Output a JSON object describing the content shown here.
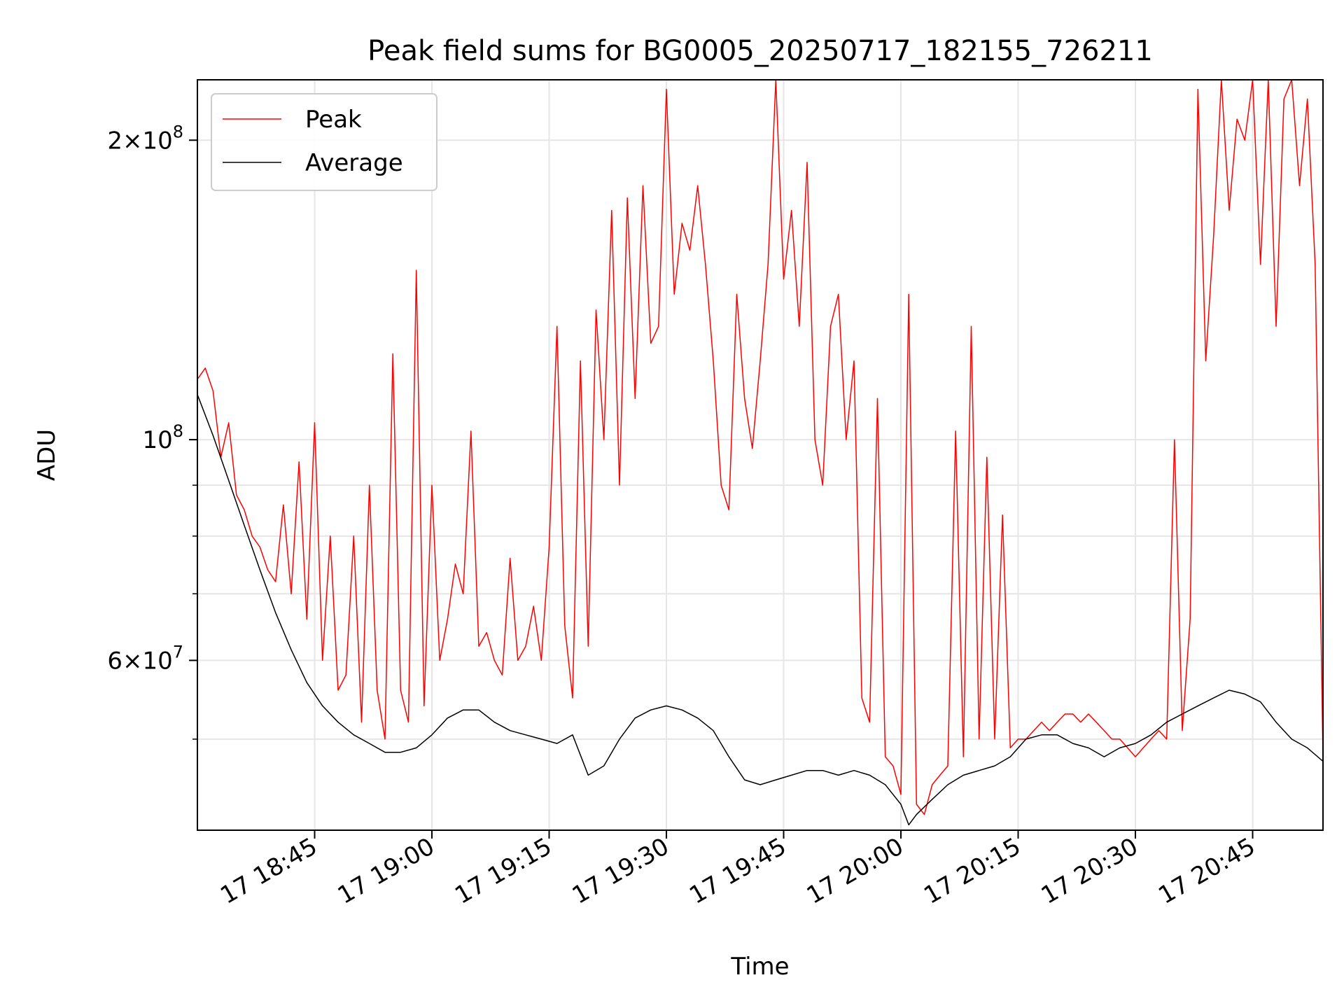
{
  "chart_data": {
    "type": "line",
    "title": "Peak field sums for BG0005_20250717_182155_726211",
    "xlabel": "Time",
    "ylabel": "ADU",
    "y_scale": "log",
    "ylim": [
      40500000,
      230000000
    ],
    "xlim": [
      "2025-07-17 18:30",
      "2025-07-17 20:54"
    ],
    "grid": true,
    "legend": "top-left",
    "x_ticks": [
      {
        "t": "2025-07-17 18:45",
        "label": "17 18:45"
      },
      {
        "t": "2025-07-17 19:00",
        "label": "17 19:00"
      },
      {
        "t": "2025-07-17 19:15",
        "label": "17 19:15"
      },
      {
        "t": "2025-07-17 19:30",
        "label": "17 19:30"
      },
      {
        "t": "2025-07-17 19:45",
        "label": "17 19:45"
      },
      {
        "t": "2025-07-17 20:00",
        "label": "17 20:00"
      },
      {
        "t": "2025-07-17 20:15",
        "label": "17 20:15"
      },
      {
        "t": "2025-07-17 20:30",
        "label": "17 20:30"
      },
      {
        "t": "2025-07-17 20:45",
        "label": "17 20:45"
      }
    ],
    "y_major_ticks": [
      {
        "value": 60000000,
        "coef": "6",
        "exp": "7"
      },
      {
        "value": 100000000,
        "coef": "",
        "exp": "8"
      },
      {
        "value": 200000000,
        "coef": "2",
        "exp": "8"
      }
    ],
    "y_minor_ticks": [
      50000000,
      70000000,
      80000000,
      90000000
    ],
    "series": [
      {
        "name": "Peak",
        "color": "#ff0000",
        "x": [
          "2025-07-17 18:30",
          "2025-07-17 18:31",
          "2025-07-17 18:32",
          "2025-07-17 18:33",
          "2025-07-17 18:34",
          "2025-07-17 18:35",
          "2025-07-17 18:36",
          "2025-07-17 18:37",
          "2025-07-17 18:38",
          "2025-07-17 18:39",
          "2025-07-17 18:40",
          "2025-07-17 18:41",
          "2025-07-17 18:42",
          "2025-07-17 18:43",
          "2025-07-17 18:44",
          "2025-07-17 18:45",
          "2025-07-17 18:46",
          "2025-07-17 18:47",
          "2025-07-17 18:48",
          "2025-07-17 18:49",
          "2025-07-17 18:50",
          "2025-07-17 18:51",
          "2025-07-17 18:52",
          "2025-07-17 18:53",
          "2025-07-17 18:54",
          "2025-07-17 18:55",
          "2025-07-17 18:56",
          "2025-07-17 18:57",
          "2025-07-17 18:58",
          "2025-07-17 18:59",
          "2025-07-17 19:00",
          "2025-07-17 19:01",
          "2025-07-17 19:02",
          "2025-07-17 19:03",
          "2025-07-17 19:04",
          "2025-07-17 19:05",
          "2025-07-17 19:06",
          "2025-07-17 19:07",
          "2025-07-17 19:08",
          "2025-07-17 19:09",
          "2025-07-17 19:10",
          "2025-07-17 19:11",
          "2025-07-17 19:12",
          "2025-07-17 19:13",
          "2025-07-17 19:14",
          "2025-07-17 19:15",
          "2025-07-17 19:16",
          "2025-07-17 19:17",
          "2025-07-17 19:18",
          "2025-07-17 19:19",
          "2025-07-17 19:20",
          "2025-07-17 19:21",
          "2025-07-17 19:22",
          "2025-07-17 19:23",
          "2025-07-17 19:24",
          "2025-07-17 19:25",
          "2025-07-17 19:26",
          "2025-07-17 19:27",
          "2025-07-17 19:28",
          "2025-07-17 19:29",
          "2025-07-17 19:30",
          "2025-07-17 19:31",
          "2025-07-17 19:32",
          "2025-07-17 19:33",
          "2025-07-17 19:34",
          "2025-07-17 19:35",
          "2025-07-17 19:36",
          "2025-07-17 19:37",
          "2025-07-17 19:38",
          "2025-07-17 19:39",
          "2025-07-17 19:40",
          "2025-07-17 19:41",
          "2025-07-17 19:42",
          "2025-07-17 19:43",
          "2025-07-17 19:44",
          "2025-07-17 19:45",
          "2025-07-17 19:46",
          "2025-07-17 19:47",
          "2025-07-17 19:48",
          "2025-07-17 19:49",
          "2025-07-17 19:50",
          "2025-07-17 19:51",
          "2025-07-17 19:52",
          "2025-07-17 19:53",
          "2025-07-17 19:54",
          "2025-07-17 19:55",
          "2025-07-17 19:56",
          "2025-07-17 19:57",
          "2025-07-17 19:58",
          "2025-07-17 19:59",
          "2025-07-17 20:00",
          "2025-07-17 20:01",
          "2025-07-17 20:02",
          "2025-07-17 20:03",
          "2025-07-17 20:04",
          "2025-07-17 20:05",
          "2025-07-17 20:06",
          "2025-07-17 20:07",
          "2025-07-17 20:08",
          "2025-07-17 20:09",
          "2025-07-17 20:10",
          "2025-07-17 20:11",
          "2025-07-17 20:12",
          "2025-07-17 20:13",
          "2025-07-17 20:14",
          "2025-07-17 20:15",
          "2025-07-17 20:16",
          "2025-07-17 20:17",
          "2025-07-17 20:18",
          "2025-07-17 20:19",
          "2025-07-17 20:20",
          "2025-07-17 20:21",
          "2025-07-17 20:22",
          "2025-07-17 20:23",
          "2025-07-17 20:24",
          "2025-07-17 20:25",
          "2025-07-17 20:26",
          "2025-07-17 20:27",
          "2025-07-17 20:28",
          "2025-07-17 20:29",
          "2025-07-17 20:30",
          "2025-07-17 20:31",
          "2025-07-17 20:32",
          "2025-07-17 20:33",
          "2025-07-17 20:34",
          "2025-07-17 20:35",
          "2025-07-17 20:36",
          "2025-07-17 20:37",
          "2025-07-17 20:38",
          "2025-07-17 20:39",
          "2025-07-17 20:40",
          "2025-07-17 20:41",
          "2025-07-17 20:42",
          "2025-07-17 20:43",
          "2025-07-17 20:44",
          "2025-07-17 20:45",
          "2025-07-17 20:46",
          "2025-07-17 20:47",
          "2025-07-17 20:48",
          "2025-07-17 20:49",
          "2025-07-17 20:50",
          "2025-07-17 20:51",
          "2025-07-17 20:52",
          "2025-07-17 20:53",
          "2025-07-17 20:54"
        ],
        "values": [
          115000000,
          118000000,
          112000000,
          96000000,
          104000000,
          88000000,
          85000000,
          80000000,
          78000000,
          74000000,
          72000000,
          86000000,
          70000000,
          95000000,
          66000000,
          104000000,
          60000000,
          80000000,
          56000000,
          58000000,
          80000000,
          52000000,
          90000000,
          56000000,
          50000000,
          122000000,
          56000000,
          52000000,
          148000000,
          54000000,
          90000000,
          60000000,
          66000000,
          75000000,
          70000000,
          102000000,
          62000000,
          64000000,
          60000000,
          58000000,
          76000000,
          60000000,
          62000000,
          68000000,
          60000000,
          78000000,
          130000000,
          65000000,
          55000000,
          120000000,
          62000000,
          135000000,
          100000000,
          170000000,
          90000000,
          175000000,
          110000000,
          180000000,
          125000000,
          130000000,
          225000000,
          140000000,
          165000000,
          155000000,
          180000000,
          150000000,
          120000000,
          90000000,
          85000000,
          140000000,
          110000000,
          98000000,
          120000000,
          150000000,
          230000000,
          145000000,
          170000000,
          130000000,
          190000000,
          100000000,
          90000000,
          130000000,
          140000000,
          100000000,
          120000000,
          55000000,
          52000000,
          110000000,
          48000000,
          47000000,
          44000000,
          140000000,
          43000000,
          42000000,
          45000000,
          46000000,
          47000000,
          102000000,
          48000000,
          130000000,
          50000000,
          96000000,
          50000000,
          84000000,
          49000000,
          50000000,
          50000000,
          51000000,
          52000000,
          51000000,
          52000000,
          53000000,
          53000000,
          52000000,
          53000000,
          52000000,
          51000000,
          50000000,
          50000000,
          49000000,
          48000000,
          49000000,
          50000000,
          51000000,
          50000000,
          100000000,
          51000000,
          66000000,
          225000000,
          120000000,
          160000000,
          230000000,
          170000000,
          210000000,
          200000000,
          230000000,
          150000000,
          230000000,
          130000000,
          220000000,
          230000000,
          180000000,
          220000000,
          150000000,
          48000000
        ]
      },
      {
        "name": "Average",
        "color": "#000000",
        "x": [
          "2025-07-17 18:30",
          "2025-07-17 18:32",
          "2025-07-17 18:34",
          "2025-07-17 18:36",
          "2025-07-17 18:38",
          "2025-07-17 18:40",
          "2025-07-17 18:42",
          "2025-07-17 18:44",
          "2025-07-17 18:46",
          "2025-07-17 18:48",
          "2025-07-17 18:50",
          "2025-07-17 18:52",
          "2025-07-17 18:54",
          "2025-07-17 18:56",
          "2025-07-17 18:58",
          "2025-07-17 19:00",
          "2025-07-17 19:02",
          "2025-07-17 19:04",
          "2025-07-17 19:06",
          "2025-07-17 19:08",
          "2025-07-17 19:10",
          "2025-07-17 19:12",
          "2025-07-17 19:14",
          "2025-07-17 19:16",
          "2025-07-17 19:18",
          "2025-07-17 19:20",
          "2025-07-17 19:22",
          "2025-07-17 19:24",
          "2025-07-17 19:26",
          "2025-07-17 19:28",
          "2025-07-17 19:30",
          "2025-07-17 19:32",
          "2025-07-17 19:34",
          "2025-07-17 19:36",
          "2025-07-17 19:38",
          "2025-07-17 19:40",
          "2025-07-17 19:42",
          "2025-07-17 19:44",
          "2025-07-17 19:46",
          "2025-07-17 19:48",
          "2025-07-17 19:50",
          "2025-07-17 19:52",
          "2025-07-17 19:54",
          "2025-07-17 19:56",
          "2025-07-17 19:58",
          "2025-07-17 20:00",
          "2025-07-17 20:01",
          "2025-07-17 20:02",
          "2025-07-17 20:04",
          "2025-07-17 20:06",
          "2025-07-17 20:08",
          "2025-07-17 20:10",
          "2025-07-17 20:12",
          "2025-07-17 20:14",
          "2025-07-17 20:16",
          "2025-07-17 20:18",
          "2025-07-17 20:20",
          "2025-07-17 20:22",
          "2025-07-17 20:24",
          "2025-07-17 20:26",
          "2025-07-17 20:28",
          "2025-07-17 20:30",
          "2025-07-17 20:32",
          "2025-07-17 20:34",
          "2025-07-17 20:36",
          "2025-07-17 20:38",
          "2025-07-17 20:40",
          "2025-07-17 20:42",
          "2025-07-17 20:44",
          "2025-07-17 20:46",
          "2025-07-17 20:48",
          "2025-07-17 20:50",
          "2025-07-17 20:52",
          "2025-07-17 20:54"
        ],
        "values": [
          111000000,
          101000000,
          91000000,
          82000000,
          74000000,
          67000000,
          61500000,
          57000000,
          54000000,
          52000000,
          50500000,
          49500000,
          48500000,
          48500000,
          49000000,
          50500000,
          52500000,
          53500000,
          53500000,
          52000000,
          51000000,
          50500000,
          50000000,
          49500000,
          50500000,
          46000000,
          47000000,
          50000000,
          52500000,
          53500000,
          54000000,
          53500000,
          52500000,
          51000000,
          48000000,
          45500000,
          45000000,
          45500000,
          46000000,
          46500000,
          46500000,
          46000000,
          46500000,
          46000000,
          45000000,
          43000000,
          41000000,
          42000000,
          43500000,
          45000000,
          46000000,
          46500000,
          47000000,
          48000000,
          50000000,
          50500000,
          50500000,
          49500000,
          49000000,
          48000000,
          49000000,
          49500000,
          50500000,
          52000000,
          53000000,
          54000000,
          55000000,
          56000000,
          55500000,
          54500000,
          52000000,
          50000000,
          49000000,
          47500000
        ]
      }
    ]
  }
}
